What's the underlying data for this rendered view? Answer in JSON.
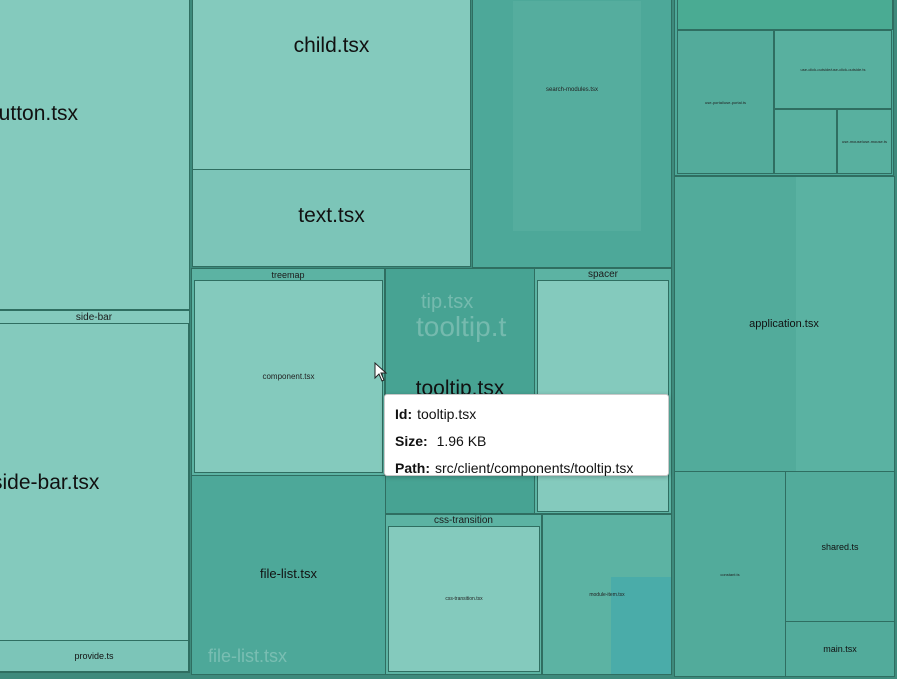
{
  "treemap": {
    "files": {
      "button": "button.tsx",
      "side_bar_file": "side-bar.tsx",
      "provide": "provide.ts",
      "child": "child.tsx",
      "text": "text.tsx",
      "search_modules": "search-modules.tsx",
      "component": "component.tsx",
      "tooltip": "tooltip.tsx",
      "file_list": "file-list.tsx",
      "css_transition_file": "css-transition.tsx",
      "module_item": "module-item.tsx",
      "application": "application.tsx",
      "shared": "shared.ts",
      "main": "main.tsx",
      "use_portal": "use-portal/use-portal.ts",
      "use_click_outside": "use-click-outside/use-click-outside.ts",
      "use_mouse": "use-mouse/use-mouse.ts",
      "constant": "constant.ts"
    },
    "groups": {
      "side_bar": "side-bar",
      "treemap": "treemap",
      "spacer": "spacer",
      "css_transition": "css-transition"
    },
    "ghosts": {
      "tooltip_a": "tip.tsx",
      "tooltip_b": "tooltip.t",
      "file_list": "file-list.tsx"
    }
  },
  "tooltip": {
    "id_label": "Id:",
    "id_value": "tooltip.tsx",
    "size_label": "Size:",
    "size_value": "1.96 KB",
    "path_label": "Path:",
    "path_value": "src/client/components/tooltip.tsx"
  },
  "colors": {
    "border": "#2f6e61",
    "tile_light": "#84cabd",
    "tile_mid": "#5cb3a3",
    "tile_dark": "#4da899"
  }
}
